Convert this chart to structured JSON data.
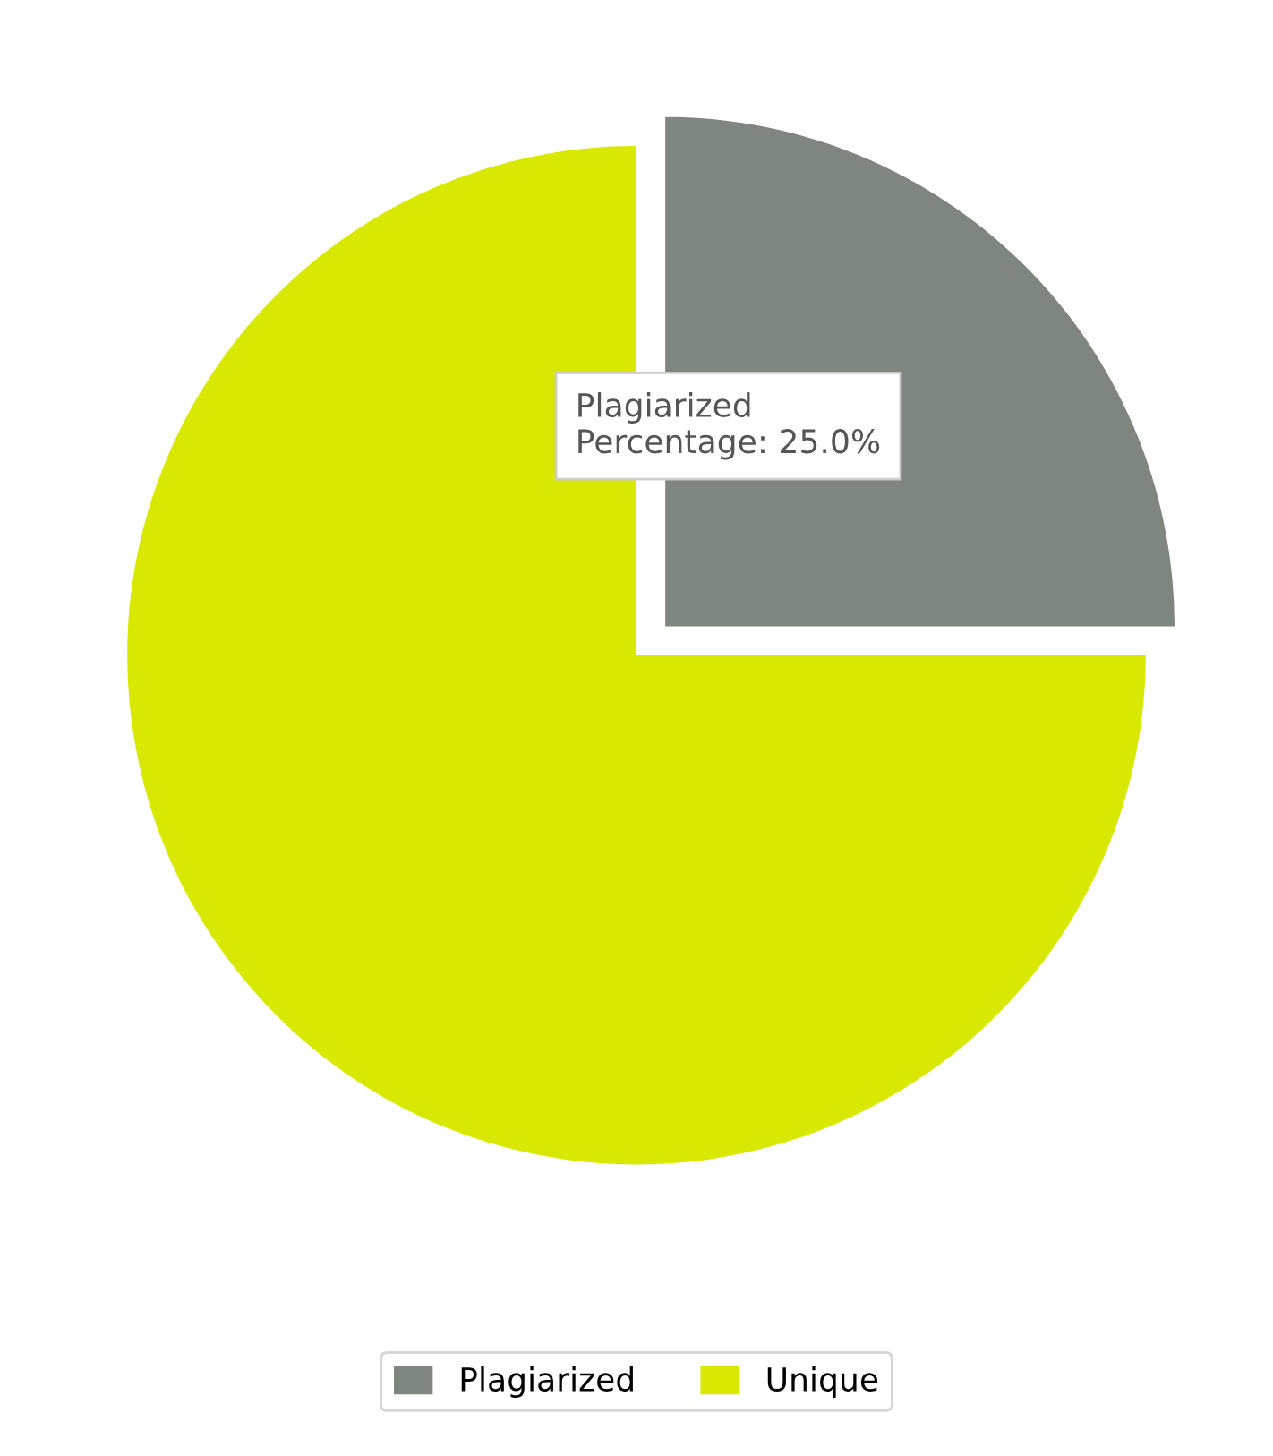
{
  "chart_data": {
    "type": "pie",
    "categories": [
      "Plagiarized",
      "Unique"
    ],
    "values": [
      25,
      75
    ],
    "colors": [
      "#7f857f",
      "#d9e800"
    ],
    "annotations": [
      "Plagiarized",
      "Percentage: 25.0%"
    ],
    "legend": "bottom"
  }
}
